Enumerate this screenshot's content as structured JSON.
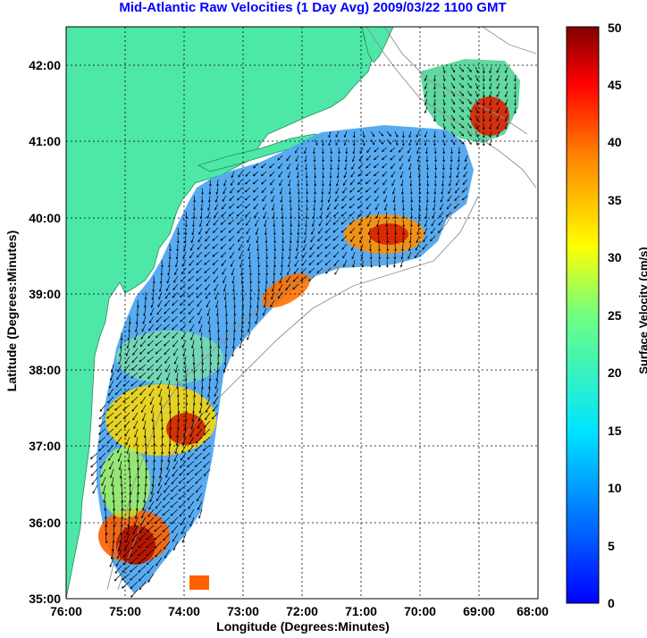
{
  "title": "Mid-Atlantic Raw Velocities (1 Day Avg) 2009/03/22 1100 GMT",
  "xlabel": "Longitude (Degrees:Minutes)",
  "ylabel": "Latitude (Degrees:Minutes)",
  "colorbar": {
    "label": "Surface Velocity (cm/s)",
    "ticks": [
      "0",
      "5",
      "10",
      "15",
      "20",
      "25",
      "30",
      "35",
      "40",
      "45",
      "50"
    ],
    "range": [
      0,
      50
    ],
    "colormap": "jet"
  },
  "map": {
    "x_ticks": [
      "76:00",
      "75:00",
      "74:00",
      "73:00",
      "72:00",
      "71:00",
      "70:00",
      "69:00",
      "68:00"
    ],
    "y_ticks": [
      "42:00",
      "41:00",
      "40:00",
      "39:00",
      "38:00",
      "37:00",
      "36:00",
      "35:00"
    ],
    "lon_range": [
      -76,
      -68
    ],
    "lat_range": [
      35,
      42.5
    ],
    "grid": "dotted",
    "land_color": "#4de8a8",
    "ocean_color": "#ffffff",
    "bathymetry_color": "#909090",
    "arrow_color": "#000000"
  }
}
